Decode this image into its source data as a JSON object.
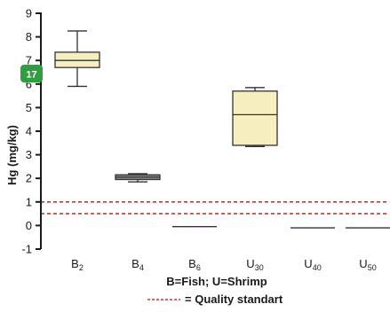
{
  "chart_data": {
    "type": "box",
    "ylabel": "Hg (mg/kg)",
    "ylim": [
      -1,
      9
    ],
    "yticks": [
      -1,
      0,
      1,
      2,
      3,
      4,
      5,
      6,
      7,
      8,
      9
    ],
    "categories": [
      {
        "letter": "B",
        "sub": "2"
      },
      {
        "letter": "B",
        "sub": "4"
      },
      {
        "letter": "B",
        "sub": "6"
      },
      {
        "letter": "U",
        "sub": "30"
      },
      {
        "letter": "U",
        "sub": "40"
      },
      {
        "letter": "U",
        "sub": "50"
      }
    ],
    "boxes": [
      {
        "min": 5.9,
        "q1": 6.7,
        "median": 7.0,
        "q3": 7.35,
        "max": 8.25
      },
      {
        "min": 1.85,
        "q1": 1.95,
        "median": 2.05,
        "q3": 2.15,
        "max": 2.2
      },
      {
        "min": -0.05,
        "q1": -0.05,
        "median": -0.05,
        "q3": -0.05,
        "max": -0.05
      },
      {
        "min": 3.35,
        "q1": 3.4,
        "median": 4.7,
        "q3": 5.7,
        "max": 5.85
      },
      {
        "min": -0.1,
        "q1": -0.1,
        "median": -0.1,
        "q3": -0.1,
        "max": -0.1
      },
      {
        "min": -0.1,
        "q1": -0.1,
        "median": -0.1,
        "q3": -0.1,
        "max": -0.1
      }
    ],
    "reference_lines": [
      1.0,
      0.5
    ],
    "reference_color": "#d0312d",
    "box_fill": "#f7efc0",
    "caption_line1": "B=Fish; U=Shrimp",
    "caption_line2": "= Quality standart",
    "badge_text": "17",
    "badge_color": "#2e9e3e"
  }
}
